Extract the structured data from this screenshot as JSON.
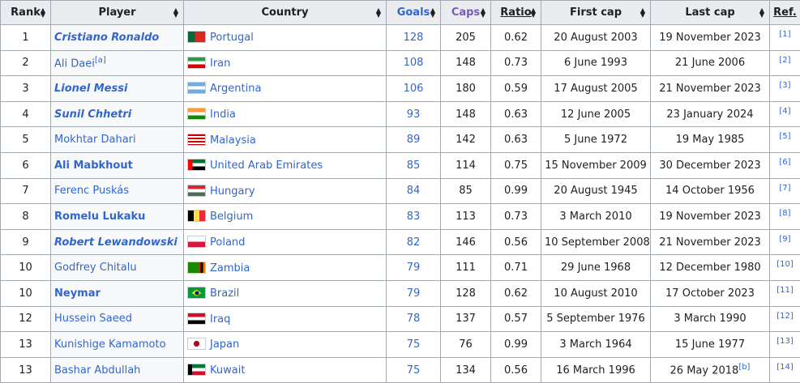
{
  "headers": {
    "rank": "Rank",
    "player": "Player",
    "country": "Country",
    "goals": "Goals",
    "caps": "Caps",
    "ratio": "Ratio",
    "first_cap": "First cap",
    "last_cap": "Last cap",
    "ref": "Ref."
  },
  "rows": [
    {
      "rank": "1",
      "player": "Cristiano Ronaldo",
      "style": "bi",
      "note": "",
      "country": "Portugal",
      "flag": "flag-portugal",
      "goals": "128",
      "caps": "205",
      "ratio": "0.62",
      "first_cap": "20 August 2003",
      "last_cap": "19 November 2023",
      "last_note": "",
      "ref": "[1]"
    },
    {
      "rank": "2",
      "player": "Ali Daei",
      "style": "",
      "note": "[a]",
      "country": "Iran",
      "flag": "flag-iran",
      "goals": "108",
      "caps": "148",
      "ratio": "0.73",
      "first_cap": "6 June 1993",
      "last_cap": "21 June 2006",
      "last_note": "",
      "ref": "[2]"
    },
    {
      "rank": "3",
      "player": "Lionel Messi",
      "style": "bi",
      "note": "",
      "country": "Argentina",
      "flag": "flag-argentina",
      "goals": "106",
      "caps": "180",
      "ratio": "0.59",
      "first_cap": "17 August 2005",
      "last_cap": "21 November 2023",
      "last_note": "",
      "ref": "[3]"
    },
    {
      "rank": "4",
      "player": "Sunil Chhetri",
      "style": "bi",
      "note": "",
      "country": "India",
      "flag": "flag-india",
      "goals": "93",
      "caps": "148",
      "ratio": "0.63",
      "first_cap": "12 June 2005",
      "last_cap": "23 January 2024",
      "last_note": "",
      "ref": "[4]"
    },
    {
      "rank": "5",
      "player": "Mokhtar Dahari",
      "style": "",
      "note": "",
      "country": "Malaysia",
      "flag": "flag-malaysia",
      "goals": "89",
      "caps": "142",
      "ratio": "0.63",
      "first_cap": "5 June 1972",
      "last_cap": "19 May 1985",
      "last_note": "",
      "ref": "[5]"
    },
    {
      "rank": "6",
      "player": "Ali Mabkhout",
      "style": "b",
      "note": "",
      "country": "United Arab Emirates",
      "flag": "flag-uae",
      "goals": "85",
      "caps": "114",
      "ratio": "0.75",
      "first_cap": "15 November 2009",
      "last_cap": "30 December 2023",
      "last_note": "",
      "ref": "[6]"
    },
    {
      "rank": "7",
      "player": "Ferenc Puskás",
      "style": "",
      "note": "",
      "country": "Hungary",
      "flag": "flag-hungary",
      "goals": "84",
      "caps": "85",
      "ratio": "0.99",
      "first_cap": "20 August 1945",
      "last_cap": "14 October 1956",
      "last_note": "",
      "ref": "[7]"
    },
    {
      "rank": "8",
      "player": "Romelu Lukaku",
      "style": "b",
      "note": "",
      "country": "Belgium",
      "flag": "flag-belgium",
      "goals": "83",
      "caps": "113",
      "ratio": "0.73",
      "first_cap": "3 March 2010",
      "last_cap": "19 November 2023",
      "last_note": "",
      "ref": "[8]"
    },
    {
      "rank": "9",
      "player": "Robert Lewandowski",
      "style": "bi",
      "note": "",
      "country": "Poland",
      "flag": "flag-poland",
      "goals": "82",
      "caps": "146",
      "ratio": "0.56",
      "first_cap": "10 September 2008",
      "last_cap": "21 November 2023",
      "last_note": "",
      "ref": "[9]"
    },
    {
      "rank": "10",
      "player": "Godfrey Chitalu",
      "style": "",
      "note": "",
      "country": "Zambia",
      "flag": "flag-zambia",
      "goals": "79",
      "caps": "111",
      "ratio": "0.71",
      "first_cap": "29 June 1968",
      "last_cap": "12 December 1980",
      "last_note": "",
      "ref": "[10]"
    },
    {
      "rank": "10",
      "player": "Neymar",
      "style": "b",
      "note": "",
      "country": "Brazil",
      "flag": "flag-brazil",
      "goals": "79",
      "caps": "128",
      "ratio": "0.62",
      "first_cap": "10 August 2010",
      "last_cap": "17 October 2023",
      "last_note": "",
      "ref": "[11]"
    },
    {
      "rank": "12",
      "player": "Hussein Saeed",
      "style": "",
      "note": "",
      "country": "Iraq",
      "flag": "flag-iraq",
      "goals": "78",
      "caps": "137",
      "ratio": "0.57",
      "first_cap": "5 September 1976",
      "last_cap": "3 March 1990",
      "last_note": "",
      "ref": "[12]"
    },
    {
      "rank": "13",
      "player": "Kunishige Kamamoto",
      "style": "",
      "note": "",
      "country": "Japan",
      "flag": "flag-japan",
      "goals": "75",
      "caps": "76",
      "ratio": "0.99",
      "first_cap": "3 March 1964",
      "last_cap": "15 June 1977",
      "last_note": "",
      "ref": "[13]"
    },
    {
      "rank": "13",
      "player": "Bashar Abdullah",
      "style": "",
      "note": "",
      "country": "Kuwait",
      "flag": "flag-kuwait",
      "goals": "75",
      "caps": "134",
      "ratio": "0.56",
      "first_cap": "16 March 1996",
      "last_cap": "26 May 2018",
      "last_note": "[b]",
      "ref": "[14]"
    }
  ]
}
